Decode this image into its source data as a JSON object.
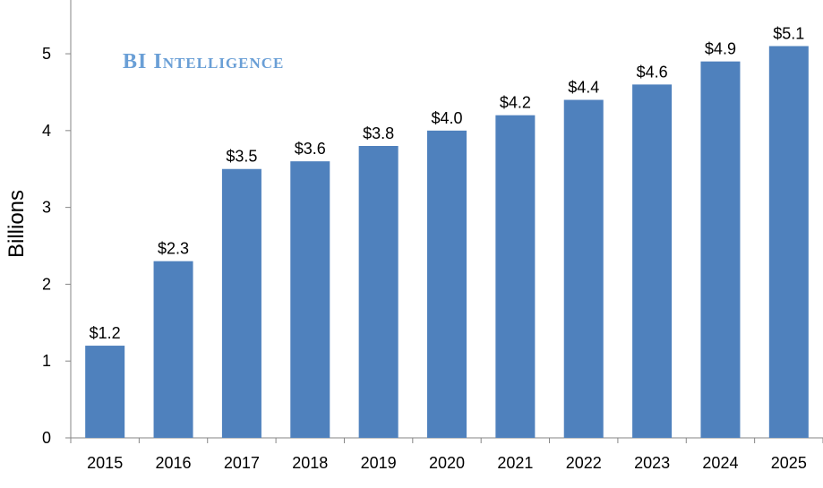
{
  "watermark": "BI Intelligence",
  "colors": {
    "bar": "#4f81bd",
    "axis": "#868686",
    "watermark": "#6a9fd6"
  },
  "chart_data": {
    "type": "bar",
    "title": "",
    "xlabel": "",
    "ylabel": "Billions",
    "categories": [
      "2015",
      "2016",
      "2017",
      "2018",
      "2019",
      "2020",
      "2021",
      "2022",
      "2023",
      "2024",
      "2025"
    ],
    "values": [
      1.2,
      2.3,
      3.5,
      3.6,
      3.8,
      4.0,
      4.2,
      4.4,
      4.6,
      4.9,
      5.1
    ],
    "data_labels": [
      "$1.2",
      "$2.3",
      "$3.5",
      "$3.6",
      "$3.8",
      "$4.0",
      "$4.2",
      "$4.4",
      "$4.6",
      "$4.9",
      "$5.1"
    ],
    "ylim": [
      0,
      5.7
    ],
    "yticks": [
      0,
      1,
      2,
      3,
      4,
      5
    ],
    "grid": false,
    "legend": "none"
  }
}
